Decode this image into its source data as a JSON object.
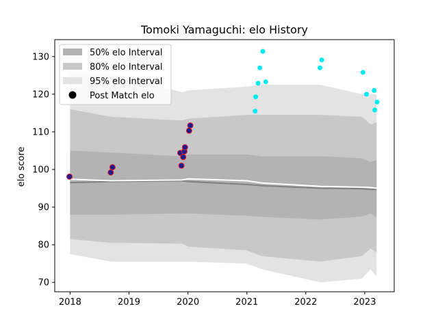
{
  "chart_data": {
    "type": "scatter",
    "title": "Tomoki Yamaguchi: elo History",
    "xlabel": "",
    "ylabel": "elo score",
    "xlim": [
      2017.74,
      2023.5
    ],
    "ylim": [
      67.5,
      134.5
    ],
    "x_ticks": [
      2018,
      2019,
      2020,
      2021,
      2022,
      2023
    ],
    "y_ticks": [
      70,
      80,
      90,
      100,
      110,
      120,
      130
    ],
    "grid": false,
    "legend": {
      "position": "top-left",
      "entries": [
        {
          "label": "50% elo Interval",
          "kind": "band50"
        },
        {
          "label": "80% elo Interval",
          "kind": "band80"
        },
        {
          "label": "95% elo Interval",
          "kind": "band95"
        },
        {
          "label": "Post Match elo",
          "kind": "point"
        }
      ]
    },
    "colors": {
      "band50": "#b3b3b3",
      "band80": "#c8c8c8",
      "band95": "#e3e3e3",
      "mean_line": "#808080",
      "median_line": "#ffffff",
      "past_point_fill": "#1b1b8c",
      "past_point_edge": "#e0202a",
      "future_point": "#00eaf2",
      "legend_point": "#000000"
    },
    "bands": {
      "x": [
        2018.0,
        2018.7,
        2019.9,
        2020.0,
        2021.0,
        2021.25,
        2022.25,
        2022.95,
        2023.1,
        2023.2
      ],
      "p95_upper": [
        125.5,
        125.5,
        120.5,
        121.0,
        122.0,
        122.5,
        122.5,
        120.0,
        120.0,
        120.0
      ],
      "p80_upper": [
        116.0,
        114.0,
        113.0,
        113.5,
        114.5,
        114.5,
        114.5,
        114.0,
        112.0,
        112.5
      ],
      "p50_upper": [
        105.0,
        104.5,
        103.5,
        104.0,
        104.0,
        103.5,
        103.5,
        103.0,
        102.0,
        102.5
      ],
      "mean": [
        96.5,
        96.8,
        97.0,
        96.8,
        96.0,
        95.7,
        95.0,
        94.9,
        94.7,
        94.7
      ],
      "median": [
        97.4,
        97.0,
        97.2,
        97.5,
        97.0,
        96.4,
        95.5,
        95.3,
        95.2,
        95.0
      ],
      "p50_lower": [
        88.0,
        88.0,
        88.3,
        88.3,
        87.7,
        87.4,
        86.7,
        87.5,
        88.3,
        87.3
      ],
      "p80_lower": [
        81.5,
        80.5,
        80.3,
        79.5,
        78.5,
        77.0,
        75.5,
        77.0,
        79.0,
        78.0
      ],
      "p95_lower": [
        77.5,
        75.5,
        75.5,
        75.5,
        75.0,
        73.5,
        70.0,
        71.0,
        73.5,
        71.5
      ]
    },
    "series": [
      {
        "name": "Post Match elo",
        "style": "past",
        "x": [
          2017.99,
          2018.69,
          2018.72,
          2019.87,
          2019.89,
          2019.92,
          2019.94,
          2019.95,
          2020.02,
          2020.04
        ],
        "y": [
          98.1,
          99.2,
          100.6,
          104.4,
          101.0,
          103.3,
          104.8,
          105.9,
          110.3,
          111.7
        ]
      },
      {
        "style": "future",
        "x": [
          2021.14,
          2021.15,
          2021.19,
          2021.22,
          2021.27,
          2021.32,
          2022.24,
          2022.27,
          2022.97,
          2023.03,
          2023.16,
          2023.17,
          2023.21
        ],
        "y": [
          115.5,
          119.3,
          122.9,
          127.0,
          131.4,
          123.3,
          127.0,
          129.1,
          125.8,
          120.0,
          121.0,
          115.8,
          117.9
        ]
      }
    ]
  }
}
